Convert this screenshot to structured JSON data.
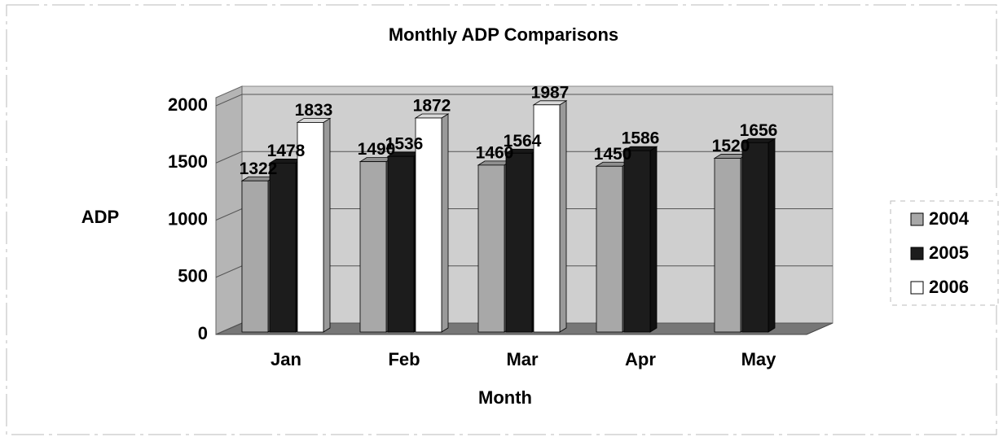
{
  "chart_data": {
    "type": "bar3d",
    "title": "Monthly ADP Comparisons",
    "x_label": "Month",
    "y_label": "ADP",
    "categories": [
      "Jan",
      "Feb",
      "Mar",
      "Apr",
      "May"
    ],
    "series": [
      {
        "name": "2004",
        "color": "#a8a8a8",
        "values": [
          1322,
          1490,
          1460,
          1450,
          1520
        ]
      },
      {
        "name": "2005",
        "color": "#1c1c1c",
        "values": [
          1478,
          1536,
          1564,
          1586,
          1656
        ]
      },
      {
        "name": "2006",
        "color": "#ffffff",
        "values": [
          1833,
          1872,
          1987,
          null,
          null
        ]
      }
    ],
    "ylim": [
      0,
      2000
    ],
    "yticks": [
      0,
      500,
      1000,
      1500,
      2000
    ],
    "grid": true,
    "legend": "right"
  }
}
